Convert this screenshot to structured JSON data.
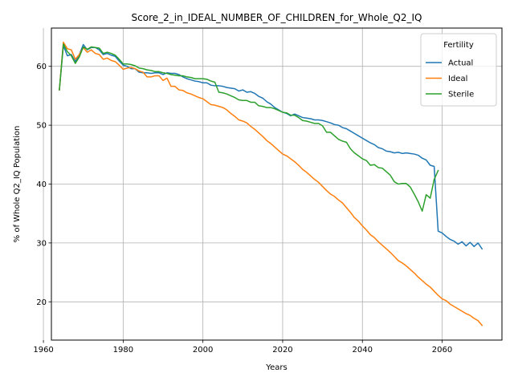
{
  "chart_data": {
    "type": "line",
    "title": "Score_2_in_IDEAL_NUMBER_OF_CHILDREN_for_Whole_Q2_IQ",
    "xlabel": "Years",
    "ylabel": "% of Whole Q2_IQ Population",
    "xlim": [
      1962,
      2075
    ],
    "ylim": [
      13.5,
      66.5
    ],
    "xticks": [
      1960,
      1980,
      2000,
      2020,
      2040,
      2060
    ],
    "yticks": [
      20,
      30,
      40,
      50,
      60
    ],
    "grid": true,
    "legend": {
      "title": "Fertility",
      "position": "top-right"
    },
    "series": [
      {
        "name": "Actual",
        "color": "#1f77b4",
        "points": [
          [
            1964,
            56.0
          ],
          [
            1965,
            63.5
          ],
          [
            1966,
            61.8
          ],
          [
            1967,
            62.0
          ],
          [
            1968,
            60.8
          ],
          [
            1969,
            62.0
          ],
          [
            1970,
            63.7
          ],
          [
            1971,
            62.8
          ],
          [
            1972,
            63.2
          ],
          [
            1973,
            63.2
          ],
          [
            1974,
            62.8
          ],
          [
            1975,
            62.0
          ],
          [
            1976,
            62.2
          ],
          [
            1977,
            61.9
          ],
          [
            1978,
            61.7
          ],
          [
            1979,
            60.9
          ],
          [
            1980,
            60.2
          ],
          [
            1981,
            60.0
          ],
          [
            1982,
            59.6
          ],
          [
            1983,
            59.6
          ],
          [
            1984,
            59.0
          ],
          [
            1985,
            58.9
          ],
          [
            1986,
            58.9
          ],
          [
            1987,
            58.8
          ],
          [
            1988,
            58.9
          ],
          [
            1989,
            58.9
          ],
          [
            1990,
            58.6
          ],
          [
            1991,
            58.9
          ],
          [
            1992,
            58.8
          ],
          [
            1993,
            58.8
          ],
          [
            1994,
            58.6
          ],
          [
            1995,
            58.2
          ],
          [
            1996,
            57.9
          ],
          [
            1997,
            57.7
          ],
          [
            1998,
            57.5
          ],
          [
            1999,
            57.4
          ],
          [
            2000,
            57.2
          ],
          [
            2001,
            57.2
          ],
          [
            2002,
            56.8
          ],
          [
            2003,
            56.7
          ],
          [
            2004,
            56.7
          ],
          [
            2005,
            56.6
          ],
          [
            2006,
            56.4
          ],
          [
            2007,
            56.3
          ],
          [
            2008,
            56.2
          ],
          [
            2009,
            55.8
          ],
          [
            2010,
            56.0
          ],
          [
            2011,
            55.6
          ],
          [
            2012,
            55.7
          ],
          [
            2013,
            55.4
          ],
          [
            2014,
            54.9
          ],
          [
            2015,
            54.6
          ],
          [
            2016,
            54.0
          ],
          [
            2017,
            53.6
          ],
          [
            2018,
            53.0
          ],
          [
            2019,
            52.6
          ],
          [
            2020,
            52.2
          ],
          [
            2021,
            52.0
          ],
          [
            2022,
            51.6
          ],
          [
            2023,
            51.9
          ],
          [
            2024,
            51.6
          ],
          [
            2025,
            51.3
          ],
          [
            2026,
            51.2
          ],
          [
            2027,
            51.1
          ],
          [
            2028,
            50.9
          ],
          [
            2029,
            50.9
          ],
          [
            2030,
            50.8
          ],
          [
            2031,
            50.6
          ],
          [
            2032,
            50.4
          ],
          [
            2033,
            50.1
          ],
          [
            2034,
            50.0
          ],
          [
            2035,
            49.6
          ],
          [
            2036,
            49.4
          ],
          [
            2037,
            49.0
          ],
          [
            2038,
            48.6
          ],
          [
            2039,
            48.2
          ],
          [
            2040,
            47.8
          ],
          [
            2041,
            47.4
          ],
          [
            2042,
            47.0
          ],
          [
            2043,
            46.7
          ],
          [
            2044,
            46.2
          ],
          [
            2045,
            46.0
          ],
          [
            2046,
            45.6
          ],
          [
            2047,
            45.5
          ],
          [
            2048,
            45.3
          ],
          [
            2049,
            45.4
          ],
          [
            2050,
            45.2
          ],
          [
            2051,
            45.3
          ],
          [
            2052,
            45.2
          ],
          [
            2053,
            45.1
          ],
          [
            2054,
            44.9
          ],
          [
            2055,
            44.4
          ],
          [
            2056,
            44.1
          ],
          [
            2057,
            43.2
          ],
          [
            2058,
            43.0
          ],
          [
            2059,
            32.0
          ],
          [
            2060,
            31.7
          ],
          [
            2061,
            31.1
          ],
          [
            2062,
            30.6
          ],
          [
            2063,
            30.3
          ],
          [
            2064,
            29.8
          ],
          [
            2065,
            30.2
          ],
          [
            2066,
            29.5
          ],
          [
            2067,
            30.1
          ],
          [
            2068,
            29.4
          ],
          [
            2069,
            30.0
          ],
          [
            2070,
            29.0
          ]
        ]
      },
      {
        "name": "Ideal",
        "color": "#ff7f0e",
        "points": [
          [
            1964,
            56.0
          ],
          [
            1965,
            64.1
          ],
          [
            1966,
            63.0
          ],
          [
            1967,
            62.8
          ],
          [
            1968,
            61.2
          ],
          [
            1969,
            62.0
          ],
          [
            1970,
            63.2
          ],
          [
            1971,
            62.4
          ],
          [
            1972,
            62.8
          ],
          [
            1973,
            62.2
          ],
          [
            1974,
            62.0
          ],
          [
            1975,
            61.2
          ],
          [
            1976,
            61.4
          ],
          [
            1977,
            61.0
          ],
          [
            1978,
            60.8
          ],
          [
            1979,
            60.2
          ],
          [
            1980,
            59.5
          ],
          [
            1981,
            59.7
          ],
          [
            1982,
            59.8
          ],
          [
            1983,
            59.6
          ],
          [
            1984,
            59.2
          ],
          [
            1985,
            59.0
          ],
          [
            1986,
            58.2
          ],
          [
            1987,
            58.2
          ],
          [
            1988,
            58.4
          ],
          [
            1989,
            58.4
          ],
          [
            1990,
            57.6
          ],
          [
            1991,
            58.0
          ],
          [
            1992,
            56.6
          ],
          [
            1993,
            56.6
          ],
          [
            1994,
            56.0
          ],
          [
            1995,
            55.9
          ],
          [
            1996,
            55.5
          ],
          [
            1997,
            55.3
          ],
          [
            1998,
            55.0
          ],
          [
            1999,
            54.7
          ],
          [
            2000,
            54.5
          ],
          [
            2001,
            54.0
          ],
          [
            2002,
            53.5
          ],
          [
            2003,
            53.4
          ],
          [
            2004,
            53.2
          ],
          [
            2005,
            53.0
          ],
          [
            2006,
            52.6
          ],
          [
            2007,
            52.0
          ],
          [
            2008,
            51.5
          ],
          [
            2009,
            50.9
          ],
          [
            2010,
            50.7
          ],
          [
            2011,
            50.4
          ],
          [
            2012,
            49.8
          ],
          [
            2013,
            49.3
          ],
          [
            2014,
            48.7
          ],
          [
            2015,
            48.1
          ],
          [
            2016,
            47.4
          ],
          [
            2017,
            46.9
          ],
          [
            2018,
            46.3
          ],
          [
            2019,
            45.7
          ],
          [
            2020,
            45.1
          ],
          [
            2021,
            44.8
          ],
          [
            2022,
            44.3
          ],
          [
            2023,
            43.8
          ],
          [
            2024,
            43.2
          ],
          [
            2025,
            42.5
          ],
          [
            2026,
            42.0
          ],
          [
            2027,
            41.4
          ],
          [
            2028,
            40.8
          ],
          [
            2029,
            40.3
          ],
          [
            2030,
            39.6
          ],
          [
            2031,
            38.9
          ],
          [
            2032,
            38.3
          ],
          [
            2033,
            37.9
          ],
          [
            2034,
            37.3
          ],
          [
            2035,
            36.8
          ],
          [
            2036,
            36.0
          ],
          [
            2037,
            35.2
          ],
          [
            2038,
            34.3
          ],
          [
            2039,
            33.7
          ],
          [
            2040,
            32.9
          ],
          [
            2041,
            32.2
          ],
          [
            2042,
            31.4
          ],
          [
            2043,
            30.9
          ],
          [
            2044,
            30.2
          ],
          [
            2045,
            29.6
          ],
          [
            2046,
            29.0
          ],
          [
            2047,
            28.4
          ],
          [
            2048,
            27.7
          ],
          [
            2049,
            27.0
          ],
          [
            2050,
            26.6
          ],
          [
            2051,
            26.1
          ],
          [
            2052,
            25.5
          ],
          [
            2053,
            24.9
          ],
          [
            2054,
            24.2
          ],
          [
            2055,
            23.6
          ],
          [
            2056,
            23.0
          ],
          [
            2057,
            22.5
          ],
          [
            2058,
            21.8
          ],
          [
            2059,
            21.1
          ],
          [
            2060,
            20.5
          ],
          [
            2061,
            20.2
          ],
          [
            2062,
            19.6
          ],
          [
            2063,
            19.2
          ],
          [
            2064,
            18.8
          ],
          [
            2065,
            18.4
          ],
          [
            2066,
            18.0
          ],
          [
            2067,
            17.7
          ],
          [
            2068,
            17.2
          ],
          [
            2069,
            16.8
          ],
          [
            2070,
            16.0
          ]
        ]
      },
      {
        "name": "Sterile",
        "color": "#2ca02c",
        "points": [
          [
            1964,
            56.0
          ],
          [
            1965,
            63.8
          ],
          [
            1966,
            62.5
          ],
          [
            1967,
            61.8
          ],
          [
            1968,
            60.5
          ],
          [
            1969,
            61.6
          ],
          [
            1970,
            63.3
          ],
          [
            1971,
            62.9
          ],
          [
            1972,
            63.3
          ],
          [
            1973,
            63.2
          ],
          [
            1974,
            63.1
          ],
          [
            1975,
            62.2
          ],
          [
            1976,
            62.4
          ],
          [
            1977,
            62.2
          ],
          [
            1978,
            61.9
          ],
          [
            1979,
            61.2
          ],
          [
            1980,
            60.4
          ],
          [
            1981,
            60.4
          ],
          [
            1982,
            60.3
          ],
          [
            1983,
            60.1
          ],
          [
            1984,
            59.7
          ],
          [
            1985,
            59.6
          ],
          [
            1986,
            59.4
          ],
          [
            1987,
            59.3
          ],
          [
            1988,
            59.1
          ],
          [
            1989,
            59.1
          ],
          [
            1990,
            58.9
          ],
          [
            1991,
            58.8
          ],
          [
            1992,
            58.6
          ],
          [
            1993,
            58.5
          ],
          [
            1994,
            58.4
          ],
          [
            1995,
            58.4
          ],
          [
            1996,
            58.2
          ],
          [
            1997,
            58.1
          ],
          [
            1998,
            57.9
          ],
          [
            1999,
            57.9
          ],
          [
            2000,
            57.9
          ],
          [
            2001,
            57.8
          ],
          [
            2002,
            57.5
          ],
          [
            2003,
            57.3
          ],
          [
            2004,
            55.6
          ],
          [
            2005,
            55.5
          ],
          [
            2006,
            55.3
          ],
          [
            2007,
            55.0
          ],
          [
            2008,
            54.7
          ],
          [
            2009,
            54.3
          ],
          [
            2010,
            54.2
          ],
          [
            2011,
            54.2
          ],
          [
            2012,
            53.9
          ],
          [
            2013,
            53.9
          ],
          [
            2014,
            53.3
          ],
          [
            2015,
            53.2
          ],
          [
            2016,
            53.0
          ],
          [
            2017,
            53.0
          ],
          [
            2018,
            52.8
          ],
          [
            2019,
            52.5
          ],
          [
            2020,
            52.2
          ],
          [
            2021,
            52.1
          ],
          [
            2022,
            51.7
          ],
          [
            2023,
            51.7
          ],
          [
            2024,
            51.3
          ],
          [
            2025,
            50.8
          ],
          [
            2026,
            50.7
          ],
          [
            2027,
            50.5
          ],
          [
            2028,
            50.3
          ],
          [
            2029,
            50.3
          ],
          [
            2030,
            49.9
          ],
          [
            2031,
            48.8
          ],
          [
            2032,
            48.8
          ],
          [
            2033,
            48.2
          ],
          [
            2034,
            47.6
          ],
          [
            2035,
            47.3
          ],
          [
            2036,
            47.1
          ],
          [
            2037,
            46.0
          ],
          [
            2038,
            45.3
          ],
          [
            2039,
            44.8
          ],
          [
            2040,
            44.3
          ],
          [
            2041,
            44.0
          ],
          [
            2042,
            43.2
          ],
          [
            2043,
            43.3
          ],
          [
            2044,
            42.8
          ],
          [
            2045,
            42.7
          ],
          [
            2046,
            42.1
          ],
          [
            2047,
            41.5
          ],
          [
            2048,
            40.4
          ],
          [
            2049,
            40.0
          ],
          [
            2050,
            40.1
          ],
          [
            2051,
            40.1
          ],
          [
            2052,
            39.5
          ],
          [
            2053,
            38.3
          ],
          [
            2054,
            37.0
          ],
          [
            2055,
            35.4
          ],
          [
            2056,
            38.2
          ],
          [
            2057,
            37.6
          ],
          [
            2058,
            40.8
          ],
          [
            2059,
            42.3
          ]
        ]
      }
    ]
  }
}
